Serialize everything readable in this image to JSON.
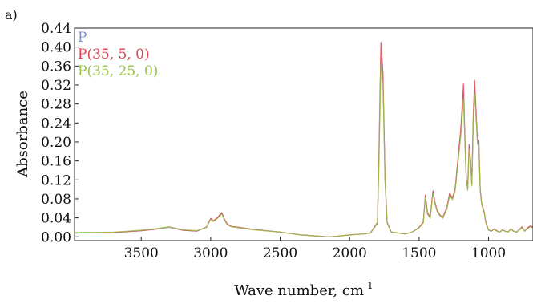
{
  "panel_label": "a)",
  "chart_data": {
    "type": "line",
    "title": "",
    "xlabel": "Wave number, cm",
    "xlabel_sup": "-1",
    "ylabel": "Absorbance",
    "xlim": [
      3980,
      680
    ],
    "ylim": [
      -0.008,
      0.44
    ],
    "x_reversed": true,
    "grid": false,
    "legend_position": "top-left",
    "x_ticks": [
      3500,
      3000,
      2500,
      2000,
      1500,
      1000
    ],
    "y_ticks": [
      0.0,
      0.04,
      0.08,
      0.12,
      0.16,
      0.2,
      0.24,
      0.28,
      0.32,
      0.36,
      0.4,
      0.44
    ],
    "x": [
      3980,
      3700,
      3600,
      3500,
      3400,
      3300,
      3200,
      3100,
      3030,
      3000,
      2980,
      2950,
      2920,
      2900,
      2880,
      2850,
      2800,
      2700,
      2500,
      2400,
      2350,
      2300,
      2250,
      2200,
      2150,
      2100,
      2000,
      1900,
      1850,
      1800,
      1790,
      1775,
      1760,
      1745,
      1730,
      1700,
      1650,
      1600,
      1550,
      1500,
      1470,
      1455,
      1440,
      1420,
      1400,
      1385,
      1370,
      1350,
      1330,
      1300,
      1280,
      1260,
      1240,
      1220,
      1200,
      1180,
      1170,
      1160,
      1150,
      1140,
      1130,
      1120,
      1110,
      1100,
      1090,
      1080,
      1070,
      1060,
      1050,
      1040,
      1030,
      1020,
      1000,
      980,
      960,
      940,
      920,
      900,
      880,
      860,
      840,
      820,
      800,
      780,
      760,
      740,
      720,
      700,
      680
    ],
    "series": [
      {
        "name": "P",
        "color": "#7b93c8",
        "values": [
          0.008,
          0.009,
          0.011,
          0.013,
          0.016,
          0.02,
          0.014,
          0.012,
          0.02,
          0.038,
          0.033,
          0.04,
          0.05,
          0.036,
          0.026,
          0.022,
          0.02,
          0.016,
          0.01,
          0.006,
          0.004,
          0.003,
          0.002,
          0.001,
          0.0,
          0.001,
          0.004,
          0.006,
          0.008,
          0.03,
          0.15,
          0.38,
          0.33,
          0.12,
          0.03,
          0.01,
          0.008,
          0.006,
          0.01,
          0.02,
          0.03,
          0.085,
          0.05,
          0.04,
          0.095,
          0.07,
          0.055,
          0.045,
          0.04,
          0.06,
          0.09,
          0.08,
          0.1,
          0.16,
          0.22,
          0.3,
          0.2,
          0.12,
          0.1,
          0.19,
          0.16,
          0.11,
          0.25,
          0.31,
          0.26,
          0.2,
          0.2,
          0.1,
          0.07,
          0.06,
          0.05,
          0.03,
          0.014,
          0.012,
          0.016,
          0.012,
          0.01,
          0.014,
          0.012,
          0.01,
          0.016,
          0.012,
          0.01,
          0.014,
          0.02,
          0.012,
          0.018,
          0.022,
          0.02
        ]
      },
      {
        "name": "P(35, 5, 0)",
        "color": "#e0424e",
        "values": [
          0.008,
          0.009,
          0.011,
          0.013,
          0.016,
          0.021,
          0.014,
          0.012,
          0.021,
          0.039,
          0.034,
          0.041,
          0.051,
          0.037,
          0.027,
          0.022,
          0.02,
          0.016,
          0.01,
          0.006,
          0.004,
          0.003,
          0.002,
          0.001,
          0.0,
          0.001,
          0.004,
          0.006,
          0.008,
          0.03,
          0.16,
          0.41,
          0.345,
          0.125,
          0.031,
          0.01,
          0.008,
          0.006,
          0.01,
          0.02,
          0.031,
          0.088,
          0.052,
          0.041,
          0.097,
          0.072,
          0.056,
          0.046,
          0.041,
          0.062,
          0.092,
          0.082,
          0.103,
          0.165,
          0.228,
          0.322,
          0.205,
          0.123,
          0.102,
          0.195,
          0.163,
          0.112,
          0.258,
          0.33,
          0.268,
          0.205,
          0.204,
          0.102,
          0.071,
          0.061,
          0.051,
          0.031,
          0.015,
          0.012,
          0.017,
          0.013,
          0.01,
          0.015,
          0.012,
          0.01,
          0.017,
          0.012,
          0.01,
          0.015,
          0.021,
          0.012,
          0.019,
          0.023,
          0.021
        ]
      },
      {
        "name": "P(35, 25, 0)",
        "color": "#9bc24a",
        "values": [
          0.009,
          0.01,
          0.012,
          0.014,
          0.017,
          0.021,
          0.015,
          0.013,
          0.02,
          0.037,
          0.032,
          0.039,
          0.048,
          0.035,
          0.025,
          0.021,
          0.019,
          0.015,
          0.01,
          0.006,
          0.004,
          0.003,
          0.002,
          0.001,
          0.0,
          0.001,
          0.004,
          0.006,
          0.008,
          0.028,
          0.14,
          0.365,
          0.32,
          0.115,
          0.029,
          0.01,
          0.008,
          0.006,
          0.01,
          0.019,
          0.029,
          0.082,
          0.048,
          0.039,
          0.092,
          0.068,
          0.053,
          0.044,
          0.039,
          0.058,
          0.087,
          0.078,
          0.097,
          0.155,
          0.212,
          0.29,
          0.195,
          0.117,
          0.098,
          0.185,
          0.156,
          0.107,
          0.243,
          0.3,
          0.252,
          0.195,
          0.195,
          0.098,
          0.068,
          0.058,
          0.049,
          0.029,
          0.014,
          0.012,
          0.016,
          0.012,
          0.01,
          0.014,
          0.012,
          0.01,
          0.016,
          0.012,
          0.01,
          0.014,
          0.019,
          0.012,
          0.017,
          0.021,
          0.019
        ]
      }
    ]
  }
}
